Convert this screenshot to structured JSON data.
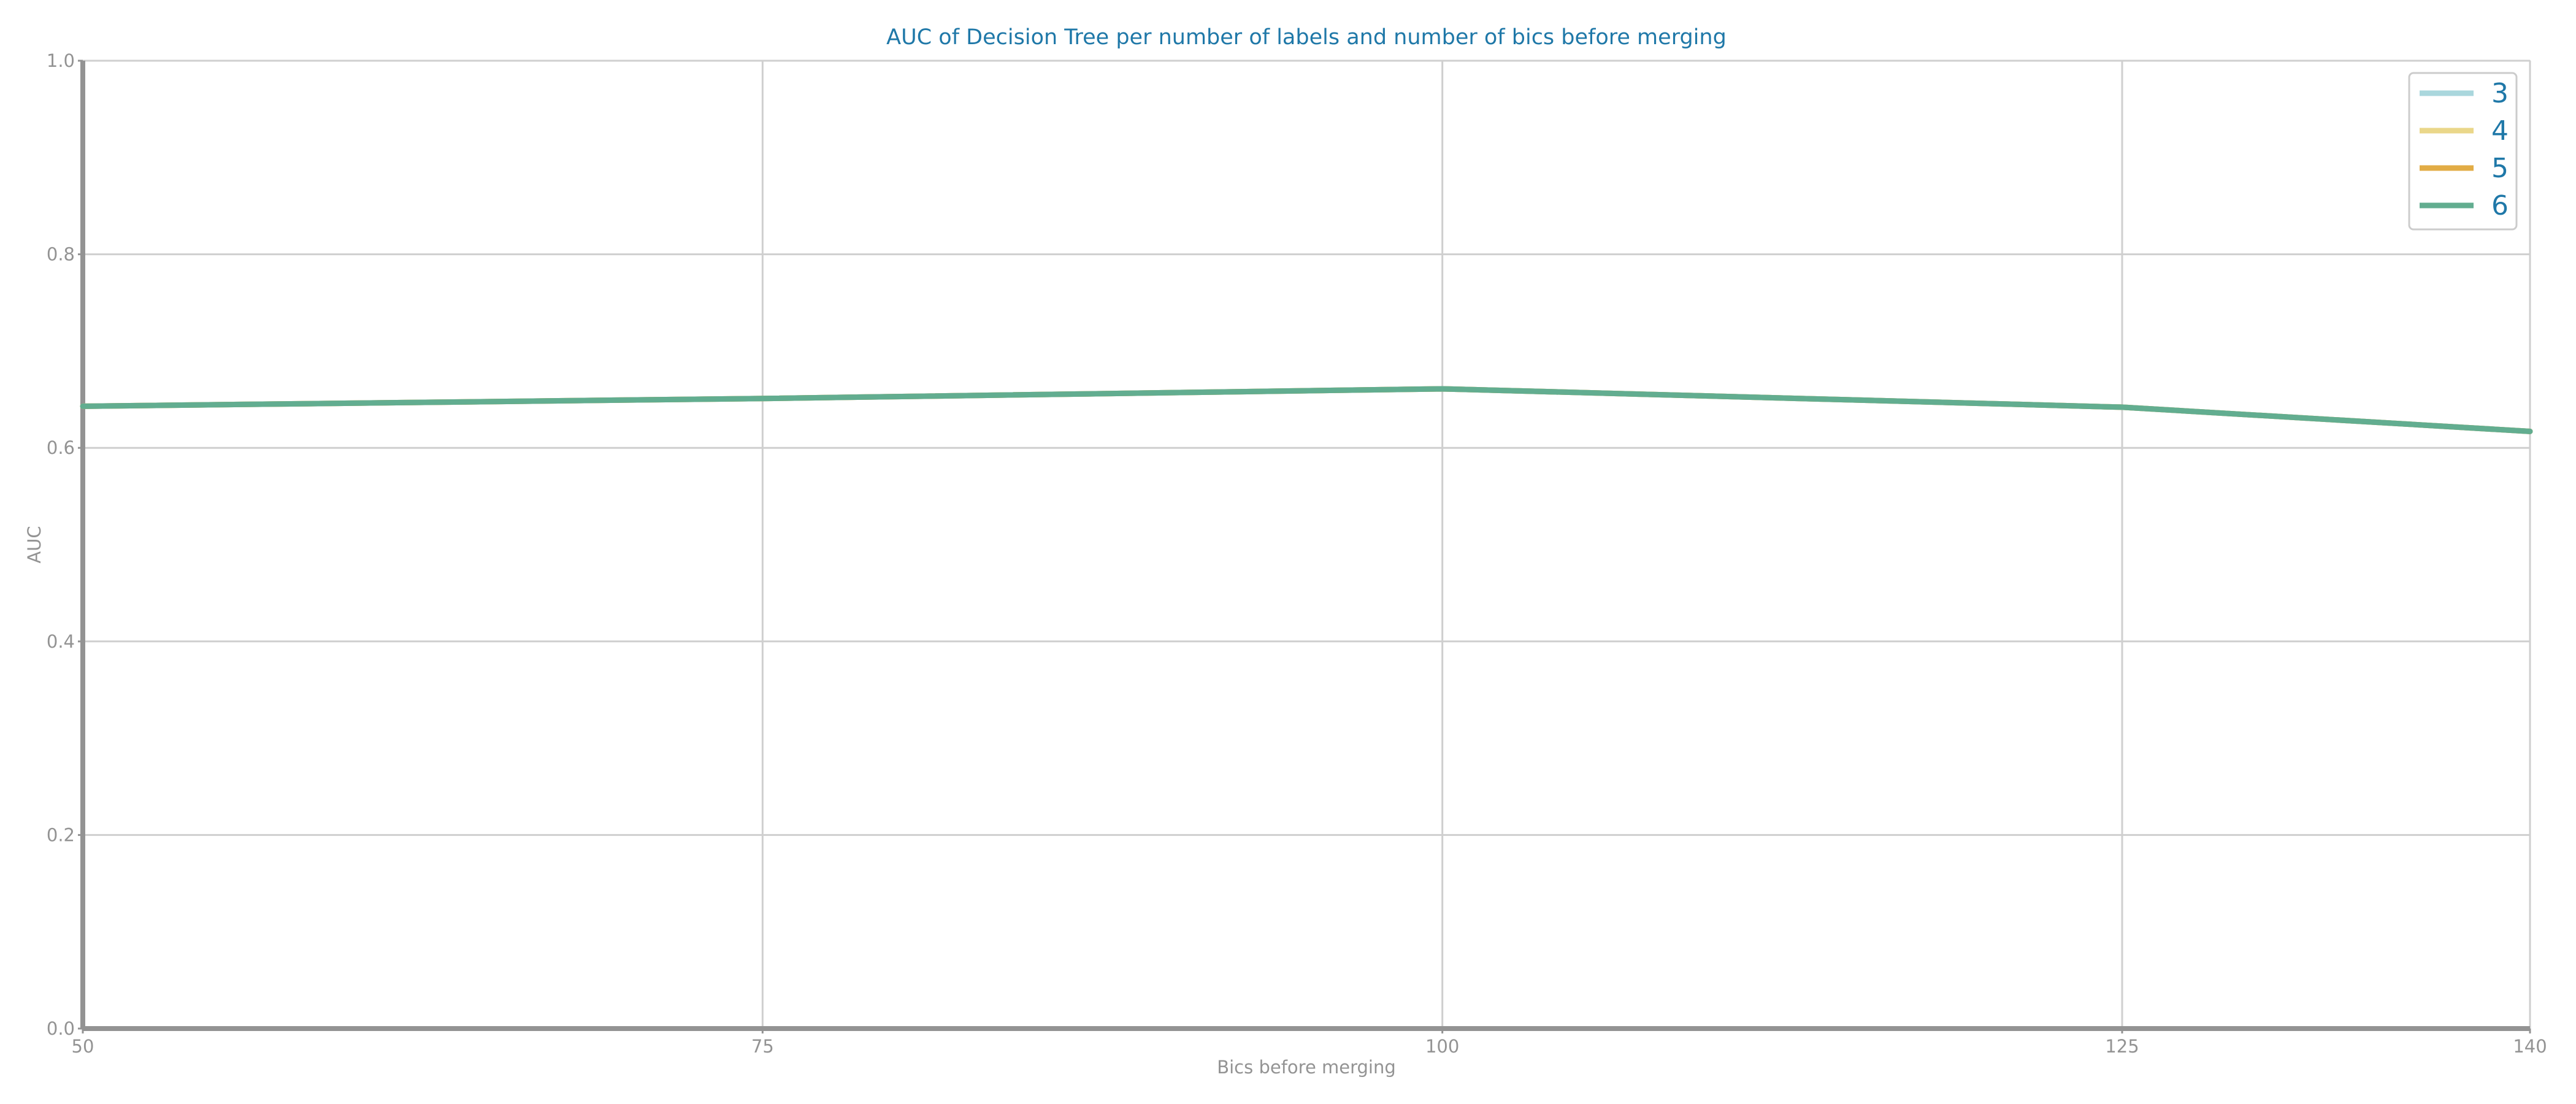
{
  "chart_data": {
    "type": "line",
    "title": "AUC of Decision Tree per number of labels and number of bics before merging",
    "xlabel": "Bics before merging",
    "ylabel": "AUC",
    "x": [
      50,
      75,
      100,
      125,
      140
    ],
    "xticks": [
      "50",
      "75",
      "100",
      "125",
      "140"
    ],
    "yticks": [
      "0.0",
      "0.2",
      "0.4",
      "0.6",
      "0.8",
      "1.0"
    ],
    "xlim": [
      50,
      140
    ],
    "ylim": [
      0,
      1
    ],
    "grid": true,
    "legend_position": "top-right",
    "series": [
      {
        "name": "3",
        "color": "#aad7dd",
        "values": [
          0.643,
          0.651,
          0.661,
          0.642,
          0.617
        ]
      },
      {
        "name": "4",
        "color": "#ead78a",
        "values": [
          0.643,
          0.651,
          0.661,
          0.642,
          0.617
        ]
      },
      {
        "name": "5",
        "color": "#e2ac45",
        "values": [
          0.643,
          0.651,
          0.661,
          0.642,
          0.617
        ]
      },
      {
        "name": "6",
        "color": "#62ad90",
        "values": [
          0.643,
          0.651,
          0.661,
          0.642,
          0.617
        ]
      }
    ]
  }
}
